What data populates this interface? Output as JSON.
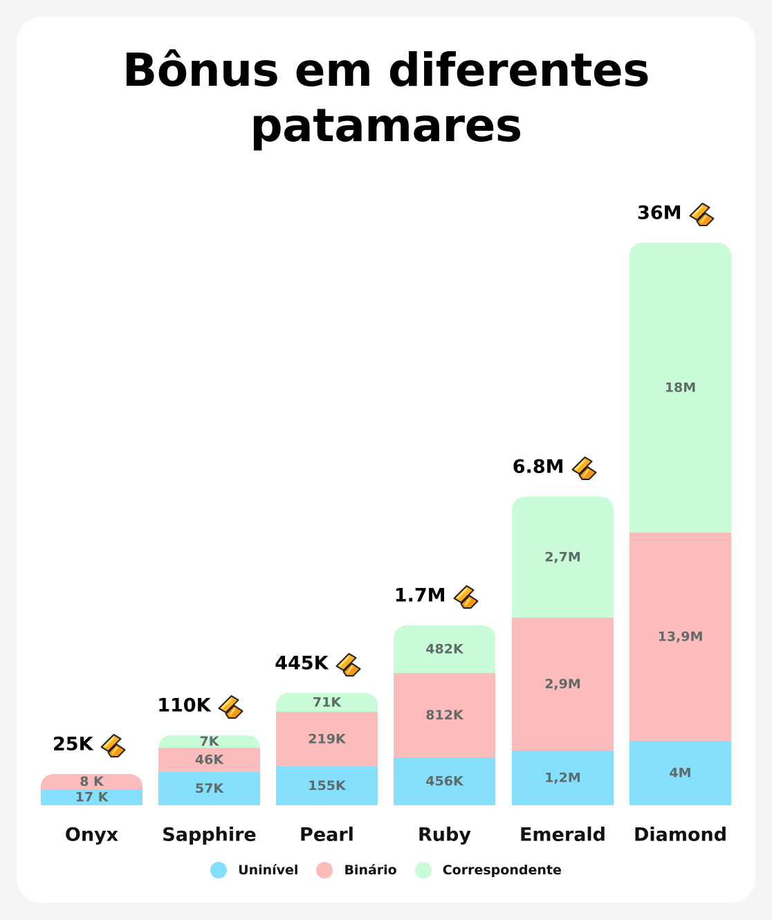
{
  "chart_data": {
    "type": "bar",
    "stacked": true,
    "title": "Bônus em diferentes patamares",
    "categories": [
      "Onyx",
      "Sapphire",
      "Pearl",
      "Ruby",
      "Emerald",
      "Diamond"
    ],
    "totals": [
      "25K",
      "110K",
      "445K",
      "1.7M",
      "6.8M",
      "36M"
    ],
    "series": [
      {
        "name": "Uninível",
        "color": "#84e0fc",
        "labels": [
          "17 K",
          "57K",
          "155K",
          "456K",
          "1,2M",
          "4M"
        ],
        "values": [
          17000,
          57000,
          155000,
          456000,
          1200000,
          4000000
        ]
      },
      {
        "name": "Binário",
        "color": "#fdbcbc",
        "labels": [
          "8 K",
          "46K",
          "219K",
          "812K",
          "2,9M",
          "13,9M"
        ],
        "values": [
          8000,
          46000,
          219000,
          812000,
          2900000,
          13900000
        ]
      },
      {
        "name": "Correspondente",
        "color": "#cbfcd8",
        "labels": [
          null,
          "7K",
          "71K",
          "482K",
          "2,7M",
          "18M"
        ],
        "values": [
          0,
          7000,
          71000,
          482000,
          2700000,
          18000000
        ]
      }
    ],
    "total_icon": "gold-bars-icon",
    "legend_position": "bottom",
    "grid": false
  }
}
